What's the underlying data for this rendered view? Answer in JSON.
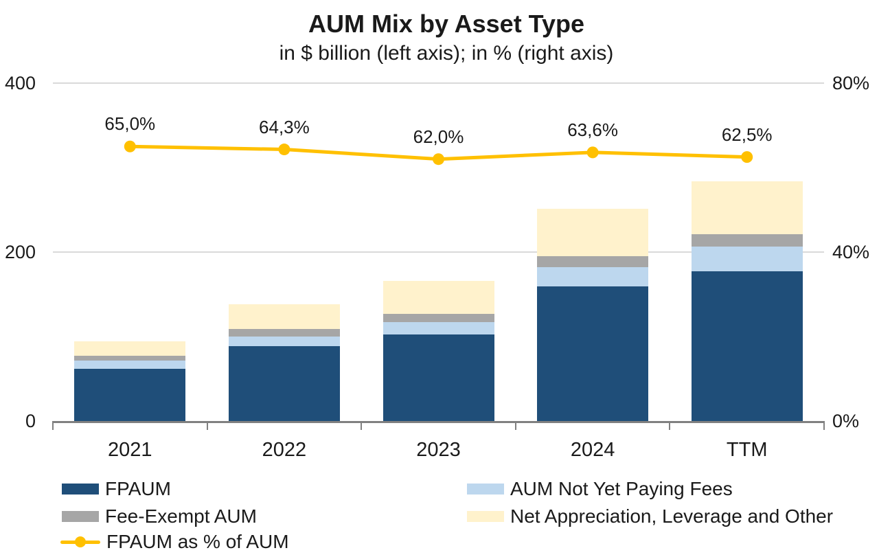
{
  "chart_data": {
    "type": "bar",
    "subtype": "stacked-bar-with-line",
    "title": "AUM Mix by Asset Type",
    "subtitle": "in $ billion (left axis); in % (right axis)",
    "categories": [
      "2021",
      "2022",
      "2023",
      "2024",
      "TTM"
    ],
    "stack_series": [
      {
        "name": "FPAUM",
        "color": "#1F4E79",
        "values": [
          61.4,
          88.9,
          102.7,
          159.7,
          177.4
        ]
      },
      {
        "name": "AUM Not Yet Paying Fees",
        "color": "#BDD7EE",
        "values": [
          10.5,
          11.2,
          14.4,
          22.5,
          29.0
        ]
      },
      {
        "name": "Fee-Exempt AUM",
        "color": "#A6A6A6",
        "values": [
          5.2,
          8.7,
          9.6,
          12.9,
          15.0
        ]
      },
      {
        "name": "Net Appreciation, Leverage and Other",
        "color": "#FFF2CC",
        "values": [
          17.4,
          29.4,
          39.0,
          56.0,
          62.5
        ]
      }
    ],
    "stack_totals": [
      94.5,
      138.2,
      165.7,
      251.1,
      283.9
    ],
    "line_series": {
      "name": "FPAUM as % of AUM",
      "color": "#FFC000",
      "values": [
        65.0,
        64.3,
        62.0,
        63.6,
        62.5
      ],
      "labels": [
        "65,0%",
        "64,3%",
        "62,0%",
        "63,6%",
        "62,5%"
      ]
    },
    "left_axis": {
      "unit": "$ billion",
      "max": 400,
      "ticks": [
        {
          "value": 400,
          "label": "400"
        },
        {
          "value": 200,
          "label": "200"
        },
        {
          "value": 0,
          "label": "0"
        }
      ]
    },
    "right_axis": {
      "unit": "%",
      "max": 80,
      "ticks": [
        {
          "value": 80,
          "label": "80%"
        },
        {
          "value": 40,
          "label": "40%"
        },
        {
          "value": 0,
          "label": "0%"
        }
      ]
    },
    "gridlines_at_left_values": [
      400,
      200
    ],
    "legend_position": "bottom"
  },
  "legend": {
    "items": [
      {
        "label": "FPAUM",
        "type": "swatch",
        "color": "#1F4E79"
      },
      {
        "label": "Fee-Exempt AUM",
        "type": "swatch",
        "color": "#A6A6A6"
      },
      {
        "label": "FPAUM as % of AUM",
        "type": "line",
        "color": "#FFC000"
      },
      {
        "label": "AUM Not Yet Paying Fees",
        "type": "swatch",
        "color": "#BDD7EE"
      },
      {
        "label": "Net Appreciation, Leverage and Other",
        "type": "swatch",
        "color": "#FFF2CC"
      }
    ]
  },
  "colors": {
    "axis_line": "#808080",
    "gridline": "#D9D9D9",
    "text": "#1A1A1A",
    "background": "#FFFFFF"
  }
}
